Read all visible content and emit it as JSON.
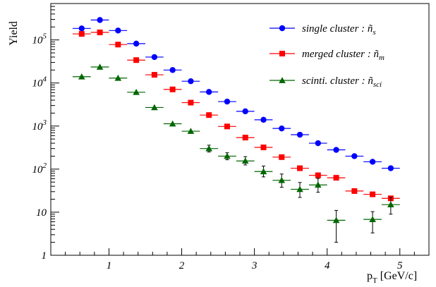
{
  "chart_data": {
    "type": "scatter",
    "xlabel": "p",
    "xlabel_subscript": "T",
    "xlabel_unit": "[GeV/c]",
    "ylabel": "Yield",
    "y_scale": "log",
    "xlim": [
      0.2,
      5.4
    ],
    "ylim": [
      1,
      700000
    ],
    "x_ticks": [
      {
        "value": 1,
        "label": "1"
      },
      {
        "value": 2,
        "label": "2"
      },
      {
        "value": 3,
        "label": "3"
      },
      {
        "value": 4,
        "label": "4"
      },
      {
        "value": 5,
        "label": "5"
      }
    ],
    "y_ticks": [
      {
        "value": 1,
        "base": "1",
        "exp": ""
      },
      {
        "value": 10,
        "base": "10",
        "exp": ""
      },
      {
        "value": 100,
        "base": "10",
        "exp": "2"
      },
      {
        "value": 1000,
        "base": "10",
        "exp": "3"
      },
      {
        "value": 10000,
        "base": "10",
        "exp": "4"
      },
      {
        "value": 100000,
        "base": "10",
        "exp": "5"
      }
    ],
    "grid": false,
    "legend_position": "top-right",
    "series": [
      {
        "name": "single cluster : ñ",
        "name_sub": "s",
        "color": "#0000ff",
        "marker": "circle",
        "points": [
          {
            "x": 0.625,
            "y": 185000
          },
          {
            "x": 0.875,
            "y": 290000
          },
          {
            "x": 1.125,
            "y": 165000
          },
          {
            "x": 1.375,
            "y": 82000
          },
          {
            "x": 1.625,
            "y": 40000
          },
          {
            "x": 1.875,
            "y": 20000
          },
          {
            "x": 2.125,
            "y": 11000
          },
          {
            "x": 2.375,
            "y": 6200
          },
          {
            "x": 2.625,
            "y": 3700
          },
          {
            "x": 2.875,
            "y": 2200
          },
          {
            "x": 3.125,
            "y": 1400
          },
          {
            "x": 3.375,
            "y": 880
          },
          {
            "x": 3.625,
            "y": 630
          },
          {
            "x": 3.875,
            "y": 400
          },
          {
            "x": 4.125,
            "y": 280
          },
          {
            "x": 4.375,
            "y": 200
          },
          {
            "x": 4.625,
            "y": 148
          },
          {
            "x": 4.875,
            "y": 105
          }
        ]
      },
      {
        "name": "merged cluster : ñ",
        "name_sub": "m",
        "color": "#ff0000",
        "marker": "square",
        "points": [
          {
            "x": 0.625,
            "y": 138000
          },
          {
            "x": 0.875,
            "y": 150000
          },
          {
            "x": 1.125,
            "y": 78000
          },
          {
            "x": 1.375,
            "y": 34000
          },
          {
            "x": 1.625,
            "y": 15500
          },
          {
            "x": 1.875,
            "y": 7100
          },
          {
            "x": 2.125,
            "y": 3500
          },
          {
            "x": 2.375,
            "y": 1800
          },
          {
            "x": 2.625,
            "y": 980
          },
          {
            "x": 2.875,
            "y": 540
          },
          {
            "x": 3.125,
            "y": 320
          },
          {
            "x": 3.375,
            "y": 190
          },
          {
            "x": 3.625,
            "y": 105
          },
          {
            "x": 3.875,
            "y": 72
          },
          {
            "x": 4.125,
            "y": 63
          },
          {
            "x": 4.375,
            "y": 31
          },
          {
            "x": 4.625,
            "y": 26
          },
          {
            "x": 4.875,
            "y": 21
          }
        ]
      },
      {
        "name": "scinti. cluster : ñ",
        "name_sub": "sci",
        "color": "#006600",
        "marker": "triangle",
        "points": [
          {
            "x": 0.625,
            "y": 14000,
            "err_lo": 0,
            "err_hi": 0
          },
          {
            "x": 0.875,
            "y": 23500,
            "err_lo": 0,
            "err_hi": 0
          },
          {
            "x": 1.125,
            "y": 13000,
            "err_lo": 0,
            "err_hi": 0
          },
          {
            "x": 1.375,
            "y": 6100,
            "err_lo": 0,
            "err_hi": 0
          },
          {
            "x": 1.625,
            "y": 2700,
            "err_lo": 0,
            "err_hi": 0
          },
          {
            "x": 1.875,
            "y": 1130,
            "err_lo": 0,
            "err_hi": 0
          },
          {
            "x": 2.125,
            "y": 760,
            "err_lo": 0,
            "err_hi": 0
          },
          {
            "x": 2.375,
            "y": 300,
            "err_lo": 50,
            "err_hi": 60
          },
          {
            "x": 2.625,
            "y": 200,
            "err_lo": 35,
            "err_hi": 40
          },
          {
            "x": 2.875,
            "y": 155,
            "err_lo": 30,
            "err_hi": 40
          },
          {
            "x": 3.125,
            "y": 88,
            "err_lo": 22,
            "err_hi": 30
          },
          {
            "x": 3.375,
            "y": 55,
            "err_lo": 17,
            "err_hi": 22
          },
          {
            "x": 3.625,
            "y": 34,
            "err_lo": 12,
            "err_hi": 15
          },
          {
            "x": 3.875,
            "y": 43,
            "err_lo": 14,
            "err_hi": 18
          },
          {
            "x": 4.125,
            "y": 6.5,
            "err_lo": 4.5,
            "err_hi": 4.5
          },
          {
            "x": 4.625,
            "y": 6.8,
            "err_lo": 3.5,
            "err_hi": 3.5
          },
          {
            "x": 4.875,
            "y": 15,
            "err_lo": 6,
            "err_hi": 7
          }
        ]
      }
    ]
  }
}
